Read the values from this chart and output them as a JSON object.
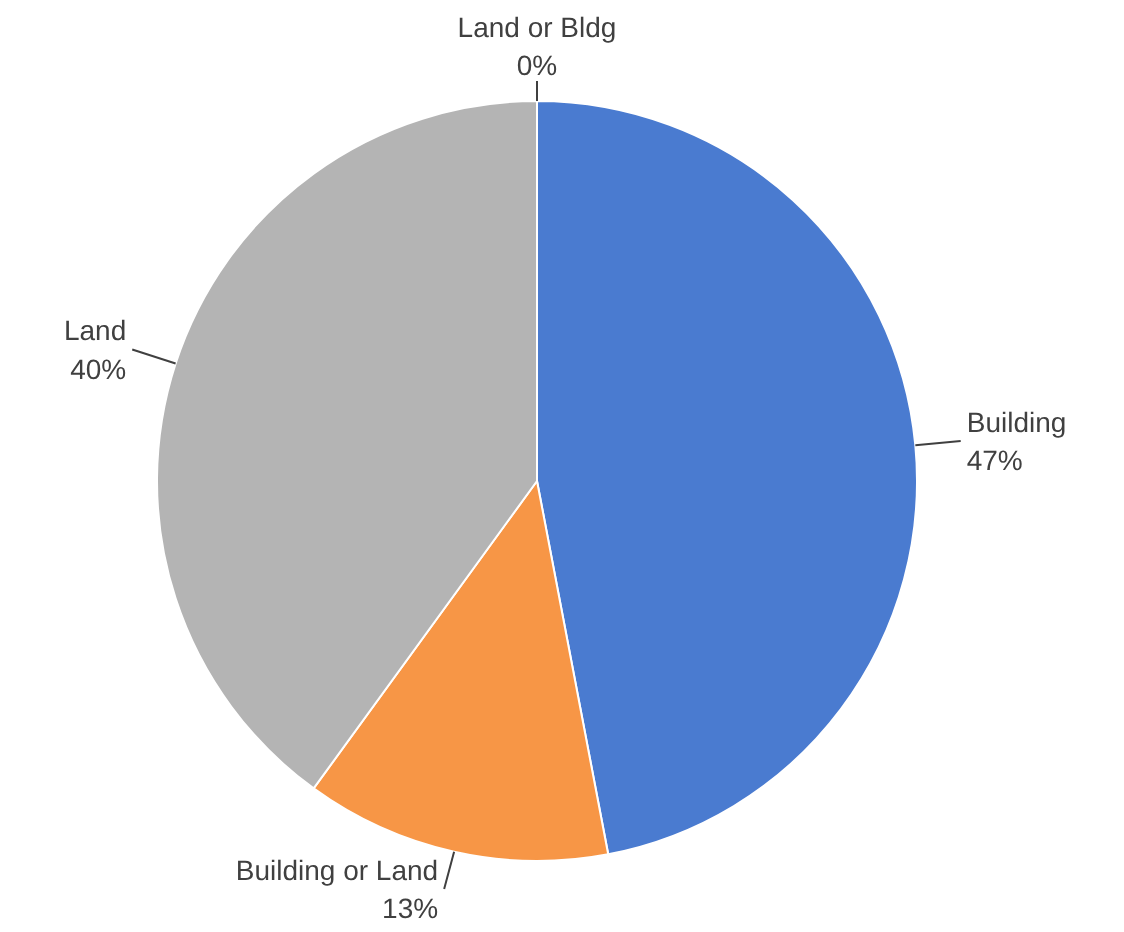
{
  "chart_data": {
    "type": "pie",
    "categories": [
      "Building",
      "Building or Land",
      "Land",
      "Land or Bldg"
    ],
    "values": [
      47,
      13,
      40,
      0
    ],
    "colors": [
      "#4a7bd0",
      "#f79646",
      "#b4b4b4",
      "#c89b00"
    ],
    "value_labels": [
      "47%",
      "13%",
      "40%",
      "0%"
    ]
  }
}
